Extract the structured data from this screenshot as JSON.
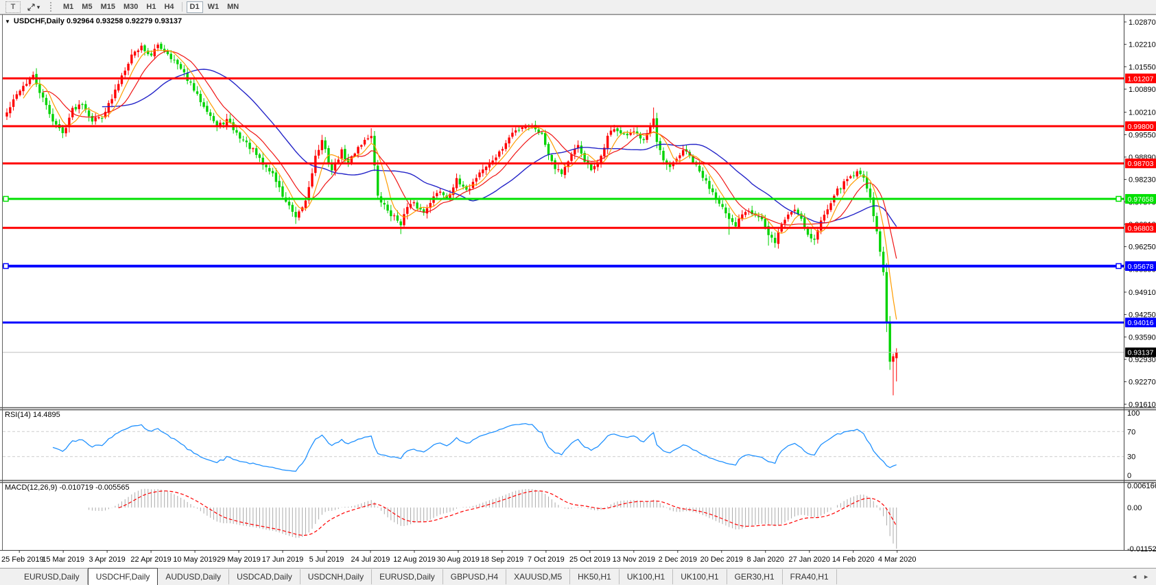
{
  "toolbar": {
    "text_tool_glyph": "T",
    "timeframes": [
      {
        "label": "M1",
        "active": false
      },
      {
        "label": "M5",
        "active": false
      },
      {
        "label": "M15",
        "active": false
      },
      {
        "label": "M30",
        "active": false
      },
      {
        "label": "H1",
        "active": false
      },
      {
        "label": "H4",
        "active": false
      },
      {
        "label": "D1",
        "active": true
      },
      {
        "label": "W1",
        "active": false
      },
      {
        "label": "MN",
        "active": false
      }
    ]
  },
  "icons": {
    "title_caret": "▼",
    "dropdown_caret": "▾",
    "scroll_left": "◄",
    "scroll_right": "►"
  },
  "chart": {
    "title": "USDCHF,Daily 0.92964 0.93258 0.92279 0.93137",
    "symbol": "USDCHF,Daily",
    "open": "0.92964",
    "high": "0.93258",
    "low": "0.92279",
    "close": "0.93137"
  },
  "indicator_labels": {
    "rsi": "RSI(14) 14.4895",
    "macd": "MACD(12,26,9) -0.010719 -0.005565"
  },
  "price_axis_ticks": [
    "1.02870",
    "1.02210",
    "1.01550",
    "1.00890",
    "1.00210",
    "0.99550",
    "0.98890",
    "0.98230",
    "0.97570",
    "0.96910",
    "0.96250",
    "0.95590",
    "0.94910",
    "0.94250",
    "0.93590",
    "0.92930",
    "0.92270",
    "0.91610"
  ],
  "rsi_axis": [
    "100",
    "70",
    "30",
    "0"
  ],
  "macd_axis": [
    "0.006166",
    "0.00",
    "-0.011523"
  ],
  "date_axis": [
    "25 Feb 2019",
    "15 Mar 2019",
    "3 Apr 2019",
    "22 Apr 2019",
    "10 May 2019",
    "29 May 2019",
    "17 Jun 2019",
    "5 Jul 2019",
    "24 Jul 2019",
    "12 Aug 2019",
    "30 Aug 2019",
    "18 Sep 2019",
    "7 Oct 2019",
    "25 Oct 2019",
    "13 Nov 2019",
    "2 Dec 2019",
    "20 Dec 2019",
    "8 Jan 2020",
    "27 Jan 2020",
    "14 Feb 2020",
    "4 Mar 2020"
  ],
  "levels": [
    {
      "label": "1.01207",
      "price": 1.01207,
      "color": "#ff0000",
      "width": 3,
      "selected": false
    },
    {
      "label": "0.99800",
      "price": 0.998,
      "color": "#ff0000",
      "width": 3,
      "selected": false
    },
    {
      "label": "0.98703",
      "price": 0.98703,
      "color": "#ff0000",
      "width": 3,
      "selected": false
    },
    {
      "label": "0.97658",
      "price": 0.97658,
      "color": "#00e000",
      "width": 3,
      "selected": true
    },
    {
      "label": "0.96803",
      "price": 0.96803,
      "color": "#ff0000",
      "width": 3,
      "selected": false
    },
    {
      "label": "0.95678",
      "price": 0.95678,
      "color": "#0000ff",
      "width": 4,
      "selected": true
    },
    {
      "label": "0.94016",
      "price": 0.94016,
      "color": "#0000ff",
      "width": 3,
      "selected": false
    }
  ],
  "bid": {
    "label": "0.93137",
    "price": 0.93137
  },
  "chart_data": {
    "type": "candlestick",
    "symbol": "USDCHF",
    "timeframe": "Daily",
    "candle_count": 272,
    "y_range": [
      0.91515,
      1.03072
    ],
    "last_candle": {
      "open": 0.92964,
      "high": 0.93258,
      "low": 0.92279,
      "close": 0.93137
    },
    "close_anchors": [
      [
        0,
        1.0019
      ],
      [
        4,
        1.0089
      ],
      [
        8,
        1.0126
      ],
      [
        11,
        1.0059
      ],
      [
        14,
        0.9998
      ],
      [
        17,
        0.9958
      ],
      [
        20,
        1.0029
      ],
      [
        23,
        1.0049
      ],
      [
        26,
        0.9998
      ],
      [
        29,
        1.001
      ],
      [
        32,
        1.006
      ],
      [
        35,
        1.013
      ],
      [
        38,
        1.019
      ],
      [
        41,
        1.0215
      ],
      [
        44,
        1.0185
      ],
      [
        46,
        1.022
      ],
      [
        49,
        1.0195
      ],
      [
        52,
        1.016
      ],
      [
        55,
        1.0119
      ],
      [
        58,
        1.0069
      ],
      [
        61,
        1.0029
      ],
      [
        64,
        0.9978
      ],
      [
        67,
        0.9998
      ],
      [
        70,
        0.9958
      ],
      [
        72,
        0.9938
      ],
      [
        75,
        0.9908
      ],
      [
        78,
        0.9867
      ],
      [
        81,
        0.984
      ],
      [
        84,
        0.9775
      ],
      [
        87,
        0.9725
      ],
      [
        88,
        0.9705
      ],
      [
        91,
        0.976
      ],
      [
        94,
        0.989
      ],
      [
        96,
        0.9935
      ],
      [
        99,
        0.985
      ],
      [
        102,
        0.9905
      ],
      [
        104,
        0.987
      ],
      [
        107,
        0.992
      ],
      [
        111,
        0.9955
      ],
      [
        113,
        0.977
      ],
      [
        117,
        0.972
      ],
      [
        120,
        0.9695
      ],
      [
        122,
        0.974
      ],
      [
        124,
        0.975
      ],
      [
        127,
        0.9725
      ],
      [
        129,
        0.976
      ],
      [
        132,
        0.979
      ],
      [
        134,
        0.977
      ],
      [
        137,
        0.982
      ],
      [
        139,
        0.9795
      ],
      [
        141,
        0.98
      ],
      [
        144,
        0.9845
      ],
      [
        147,
        0.987
      ],
      [
        150,
        0.99
      ],
      [
        154,
        0.996
      ],
      [
        158,
        0.9985
      ],
      [
        161,
        0.9975
      ],
      [
        163,
        0.9955
      ],
      [
        165,
        0.99
      ],
      [
        167,
        0.986
      ],
      [
        169,
        0.9843
      ],
      [
        172,
        0.9895
      ],
      [
        174,
        0.992
      ],
      [
        176,
        0.988
      ],
      [
        178,
        0.985
      ],
      [
        180,
        0.9865
      ],
      [
        183,
        0.995
      ],
      [
        185,
        0.9975
      ],
      [
        188,
        0.995
      ],
      [
        191,
        0.996
      ],
      [
        194,
        0.9945
      ],
      [
        197,
        1.0
      ],
      [
        198,
        0.993
      ],
      [
        200,
        0.9875
      ],
      [
        202,
        0.9855
      ],
      [
        206,
        0.991
      ],
      [
        208,
        0.989
      ],
      [
        210,
        0.986
      ],
      [
        212,
        0.983
      ],
      [
        214,
        0.98
      ],
      [
        216,
        0.9775
      ],
      [
        218,
        0.974
      ],
      [
        220,
        0.97
      ],
      [
        222,
        0.9685
      ],
      [
        224,
        0.9725
      ],
      [
        226,
        0.9735
      ],
      [
        228,
        0.972
      ],
      [
        230,
        0.9705
      ],
      [
        232,
        0.9655
      ],
      [
        234,
        0.964
      ],
      [
        236,
        0.969
      ],
      [
        238,
        0.972
      ],
      [
        240,
        0.9735
      ],
      [
        242,
        0.971
      ],
      [
        244,
        0.966
      ],
      [
        246,
        0.9645
      ],
      [
        248,
        0.97
      ],
      [
        250,
        0.974
      ],
      [
        252,
        0.978
      ],
      [
        254,
        0.98
      ],
      [
        256,
        0.9825
      ],
      [
        258,
        0.984
      ],
      [
        260,
        0.9845
      ],
      [
        261,
        0.983
      ],
      [
        262,
        0.98
      ],
      [
        263,
        0.977
      ],
      [
        264,
        0.9715
      ],
      [
        265,
        0.967
      ],
      [
        266,
        0.961
      ],
      [
        267,
        0.955
      ],
      [
        268,
        0.94
      ],
      [
        269,
        0.9286
      ],
      [
        270,
        0.9302
      ],
      [
        271,
        0.93137
      ]
    ],
    "wick_overrides": {
      "41": {
        "high": 1.0226
      },
      "46": {
        "high": 1.0226
      },
      "88": {
        "low": 0.9692
      },
      "111": {
        "high": 0.9974
      },
      "120": {
        "low": 0.9662
      },
      "197": {
        "high": 1.0035
      },
      "220": {
        "low": 0.966
      },
      "232": {
        "low": 0.9628
      },
      "246": {
        "low": 0.963
      },
      "269": {
        "low": 0.9262
      },
      "270": {
        "low": 0.9187,
        "high": 0.931
      },
      "271": {
        "open": 0.92964,
        "high": 0.93258,
        "low": 0.92279,
        "close": 0.93137
      }
    },
    "moving_averages": [
      {
        "period": 6,
        "color": "#ff9c00"
      },
      {
        "period": 12,
        "color": "#f01414"
      },
      {
        "period": 30,
        "color": "#2424c8"
      }
    ],
    "rsi": {
      "period": 14,
      "last": 14.4895,
      "overbought": 70,
      "oversold": 30
    },
    "macd": {
      "fast": 12,
      "slow": 26,
      "signal": 9,
      "last_main": -0.010719,
      "last_signal": -0.005565,
      "axis_max": 0.006166,
      "axis_min": -0.011523
    }
  },
  "tabs": {
    "items": [
      "EURUSD,Daily",
      "USDCHF,Daily",
      "AUDUSD,Daily",
      "USDCAD,Daily",
      "USDCNH,Daily",
      "EURUSD,Daily",
      "GBPUSD,H4",
      "XAUUSD,M5",
      "HK50,H1",
      "UK100,H1",
      "UK100,H1",
      "GER30,H1",
      "FRA40,H1"
    ],
    "active_index": 1
  },
  "colors": {
    "bull": "#ff0000",
    "bear": "#00d300",
    "rsi_line": "#1e90ff",
    "rsi_level_dash": "#cccccc",
    "macd_hist": "#aaaaaa",
    "macd_signal": "#ff0000",
    "bid_line": "#c0c0c0",
    "bid_box": "#000000",
    "axis_line": "#444444"
  }
}
